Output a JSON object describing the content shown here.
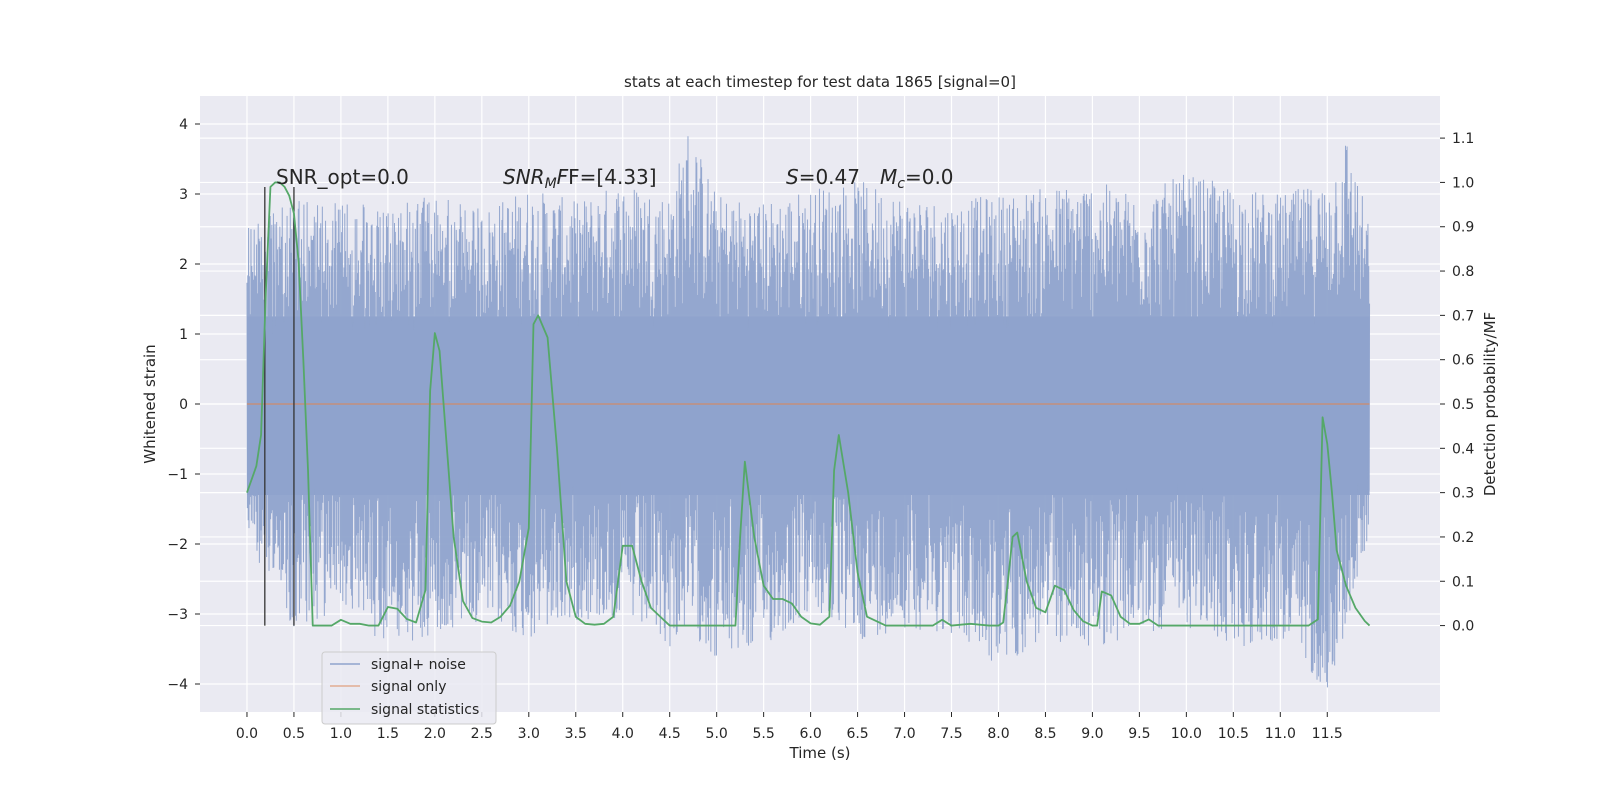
{
  "chart_data": {
    "type": "line",
    "title": "stats at each timestep for test data 1865 [signal=0]",
    "xlabel": "Time (s)",
    "ylabel_left": "Whitened strain",
    "ylabel_right": "Detection probability/MF",
    "xlim": [
      -0.5,
      12.7
    ],
    "ylim_left": [
      -4.4,
      4.4
    ],
    "ylim_right": [
      -0.195,
      1.195
    ],
    "x_ticks": [
      "0.0",
      "0.5",
      "1.0",
      "1.5",
      "2.0",
      "2.5",
      "3.0",
      "3.5",
      "4.0",
      "4.5",
      "5.0",
      "5.5",
      "6.0",
      "6.5",
      "7.0",
      "7.5",
      "8.0",
      "8.5",
      "9.0",
      "9.5",
      "10.0",
      "10.5",
      "11.0",
      "11.5"
    ],
    "y_ticks_left": [
      "4",
      "3",
      "2",
      "1",
      "0",
      "−1",
      "−2",
      "−3",
      "−4"
    ],
    "y_ticks_right": [
      "1.1",
      "1.0",
      "0.9",
      "0.8",
      "0.7",
      "0.6",
      "0.5",
      "0.4",
      "0.3",
      "0.2",
      "0.1",
      "0.0"
    ],
    "grid": true,
    "legend_position": "lower-left",
    "annotations": {
      "snr_opt": "SNR_opt=0.0",
      "snr_mf_main": "SNR",
      "snr_mf_sub": "M",
      "snr_mf_rest": "F=[4.33]",
      "s_label": "S",
      "s_value": "=0.47",
      "mc_label": "M",
      "mc_sub": "c",
      "mc_value": "=0.0"
    },
    "window_markers_x": [
      0.19,
      0.5
    ],
    "series": [
      {
        "name": "signal+ noise",
        "axis": "left",
        "color": "#8fa3cc",
        "envelope_x": [
          0.0,
          0.5,
          1.0,
          1.5,
          2.0,
          2.5,
          3.0,
          3.5,
          4.0,
          4.5,
          4.7,
          5.0,
          5.5,
          6.0,
          6.5,
          7.0,
          7.5,
          8.0,
          8.5,
          9.0,
          9.5,
          10.0,
          10.5,
          11.0,
          11.5,
          11.7,
          11.95
        ],
        "envelope_upper": [
          2.6,
          2.9,
          2.9,
          2.8,
          3.0,
          2.8,
          3.1,
          2.9,
          3.2,
          3.0,
          4.0,
          3.0,
          2.9,
          3.1,
          3.2,
          3.0,
          2.9,
          3.0,
          3.1,
          3.2,
          3.0,
          3.3,
          3.1,
          3.0,
          3.2,
          3.9,
          2.6
        ],
        "envelope_lower": [
          -1.9,
          -3.3,
          -2.9,
          -3.5,
          -3.3,
          -3.1,
          -3.4,
          -3.1,
          -3.1,
          -3.5,
          -3.2,
          -3.7,
          -3.5,
          -3.0,
          -3.4,
          -3.2,
          -3.3,
          -3.8,
          -3.4,
          -3.5,
          -3.3,
          -3.2,
          -3.5,
          -3.4,
          -4.1,
          -3.3,
          -1.8
        ]
      },
      {
        "name": "signal only",
        "axis": "left",
        "color": "#dd8452",
        "x": [
          0.0,
          11.95
        ],
        "y": [
          0.0,
          0.0
        ]
      },
      {
        "name": "signal statistics",
        "axis": "right",
        "color": "#55a868",
        "x": [
          0.0,
          0.1,
          0.15,
          0.2,
          0.25,
          0.3,
          0.35,
          0.4,
          0.45,
          0.5,
          0.55,
          0.6,
          0.65,
          0.7,
          0.8,
          0.9,
          1.0,
          1.1,
          1.2,
          1.3,
          1.4,
          1.5,
          1.6,
          1.7,
          1.8,
          1.9,
          1.95,
          2.0,
          2.05,
          2.1,
          2.2,
          2.3,
          2.4,
          2.5,
          2.6,
          2.7,
          2.8,
          2.9,
          3.0,
          3.05,
          3.1,
          3.2,
          3.3,
          3.4,
          3.5,
          3.6,
          3.7,
          3.8,
          3.9,
          4.0,
          4.1,
          4.2,
          4.3,
          4.4,
          4.5,
          4.6,
          4.7,
          4.8,
          4.9,
          5.0,
          5.1,
          5.2,
          5.25,
          5.3,
          5.4,
          5.5,
          5.6,
          5.7,
          5.8,
          5.9,
          6.0,
          6.1,
          6.2,
          6.25,
          6.3,
          6.4,
          6.5,
          6.6,
          6.8,
          7.0,
          7.2,
          7.3,
          7.4,
          7.5,
          7.7,
          7.9,
          8.0,
          8.05,
          8.1,
          8.15,
          8.2,
          8.3,
          8.4,
          8.5,
          8.6,
          8.7,
          8.8,
          8.9,
          9.0,
          9.05,
          9.1,
          9.2,
          9.3,
          9.4,
          9.5,
          9.6,
          9.7,
          9.8,
          10.0,
          10.5,
          11.0,
          11.3,
          11.4,
          11.45,
          11.5,
          11.55,
          11.6,
          11.7,
          11.8,
          11.9,
          11.95
        ],
        "y": [
          0.3,
          0.36,
          0.43,
          0.75,
          0.99,
          1.0,
          1.0,
          0.99,
          0.97,
          0.93,
          0.82,
          0.6,
          0.35,
          0.0,
          0.0,
          0.0,
          0.013,
          0.004,
          0.004,
          0.0,
          0.0,
          0.042,
          0.038,
          0.015,
          0.007,
          0.08,
          0.53,
          0.66,
          0.62,
          0.48,
          0.2,
          0.055,
          0.017,
          0.009,
          0.007,
          0.02,
          0.045,
          0.1,
          0.22,
          0.68,
          0.7,
          0.65,
          0.4,
          0.1,
          0.02,
          0.004,
          0.002,
          0.004,
          0.02,
          0.18,
          0.18,
          0.1,
          0.04,
          0.02,
          0.0,
          0.0,
          0.0,
          0.0,
          0.0,
          0.0,
          0.0,
          0.0,
          0.2,
          0.37,
          0.2,
          0.09,
          0.06,
          0.06,
          0.05,
          0.02,
          0.005,
          0.002,
          0.02,
          0.35,
          0.43,
          0.3,
          0.12,
          0.02,
          0.0,
          0.0,
          0.0,
          0.0,
          0.013,
          0.0,
          0.004,
          0.0,
          0.0,
          0.007,
          0.1,
          0.2,
          0.21,
          0.1,
          0.04,
          0.03,
          0.09,
          0.08,
          0.035,
          0.01,
          0.0,
          0.0,
          0.077,
          0.068,
          0.02,
          0.004,
          0.004,
          0.014,
          0.0,
          0.0,
          0.0,
          0.0,
          0.0,
          0.0,
          0.014,
          0.47,
          0.41,
          0.3,
          0.17,
          0.09,
          0.04,
          0.01,
          0.0
        ]
      }
    ]
  }
}
